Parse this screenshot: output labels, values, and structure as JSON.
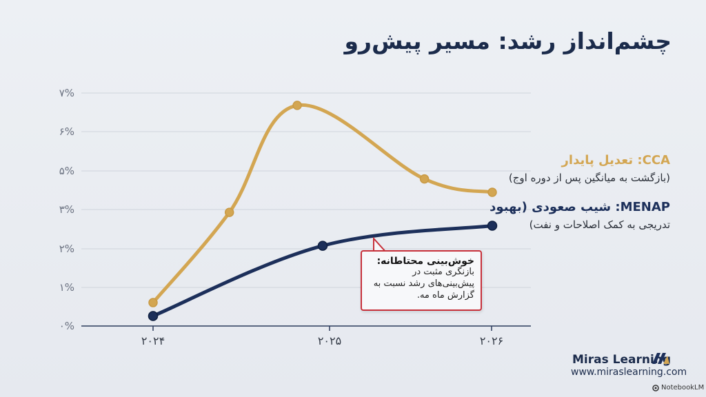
{
  "title": "چشم‌انداز رشد: مسیر پیش‌رو",
  "colors": {
    "cca": "#d3a652",
    "menap": "#1c2f5a",
    "grid": "#cfd4dc",
    "axis": "#2a3a5a",
    "callout_border": "#c7303a"
  },
  "chart_data": {
    "type": "line",
    "title": "",
    "xlabel": "",
    "ylabel": "",
    "x_ticks": [
      "۲۰۲۴",
      "۲۰۲۵",
      "۲۰۲۶"
    ],
    "y_ticks": [
      "۰%",
      "۱%",
      "۲%",
      "۳%",
      "۵%",
      "۶%",
      "۷%"
    ],
    "grid": true,
    "series": [
      {
        "name": "CCA",
        "points": [
          [
            2024.0,
            0.7
          ],
          [
            2024.45,
            3.4
          ],
          [
            2024.85,
            6.6
          ],
          [
            2025.6,
            4.4
          ],
          [
            2026.0,
            4.0
          ]
        ]
      },
      {
        "name": "MENAP",
        "points": [
          [
            2024.0,
            0.3
          ],
          [
            2025.0,
            2.4
          ],
          [
            2026.0,
            3.0
          ]
        ]
      }
    ]
  },
  "legend": {
    "cca": {
      "name": "CCA: تعدیل پایدار",
      "desc": "(بازگشت به میانگین پس از دوره اوج)"
    },
    "menap": {
      "name": "MENAP: شیب صعودی (بهبود",
      "desc": "تدریجی به کمک اصلاحات و نفت)"
    }
  },
  "callout": {
    "title": "خوش‌بینی محتاطانه:",
    "body": "بازنگری مثبت در پیش‌بینی‌های رشد نسبت به گزارش ماه مه."
  },
  "brand": {
    "name": "Miras Learning",
    "url": "www.miraslearning.com",
    "watermark": "NotebookLM"
  }
}
